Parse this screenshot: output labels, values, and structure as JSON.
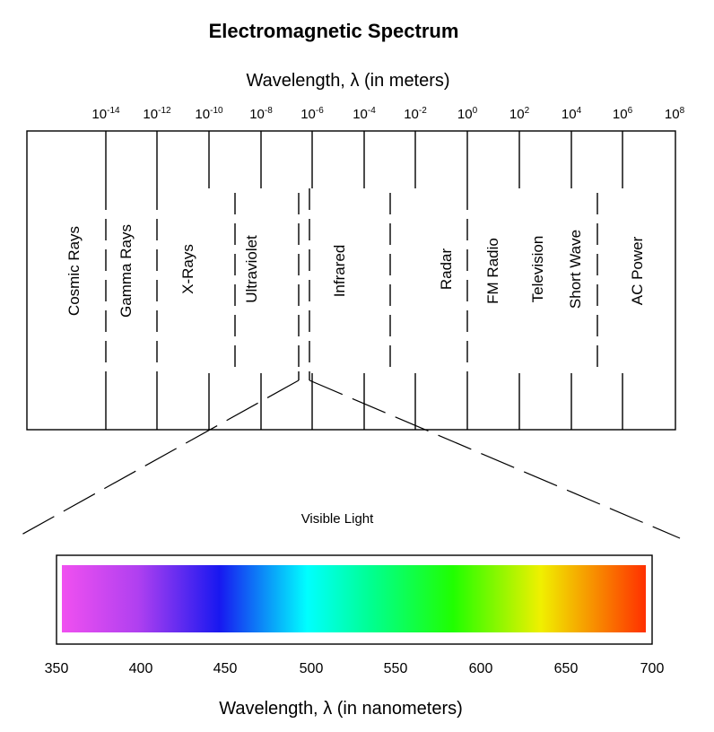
{
  "title": "Electromagnetic Spectrum",
  "top_axis": {
    "label_prefix": "Wavelength, ",
    "label_symbol": "λ",
    "label_suffix": " (in meters)",
    "ticks": [
      {
        "base": "10",
        "exp": "-14"
      },
      {
        "base": "10",
        "exp": "-12"
      },
      {
        "base": "10",
        "exp": "-10"
      },
      {
        "base": "10",
        "exp": "-8"
      },
      {
        "base": "10",
        "exp": "-6"
      },
      {
        "base": "10",
        "exp": "-4"
      },
      {
        "base": "10",
        "exp": "-2"
      },
      {
        "base": "10",
        "exp": "0"
      },
      {
        "base": "10",
        "exp": "2"
      },
      {
        "base": "10",
        "exp": "4"
      },
      {
        "base": "10",
        "exp": "6"
      },
      {
        "base": "10",
        "exp": "8"
      }
    ]
  },
  "bands": [
    "Cosmic Rays",
    "Gamma Rays",
    "X-Rays",
    "Ultraviolet",
    "Infrared",
    "Radar",
    "FM Radio",
    "Television",
    "Short Wave",
    "AC Power"
  ],
  "visible_light_label": "Visible Light",
  "bottom_axis": {
    "label_prefix": "Wavelength, ",
    "label_symbol": "λ",
    "label_suffix": " (in nanometers)",
    "ticks": [
      "350",
      "400",
      "450",
      "500",
      "550",
      "600",
      "650",
      "700"
    ]
  }
}
